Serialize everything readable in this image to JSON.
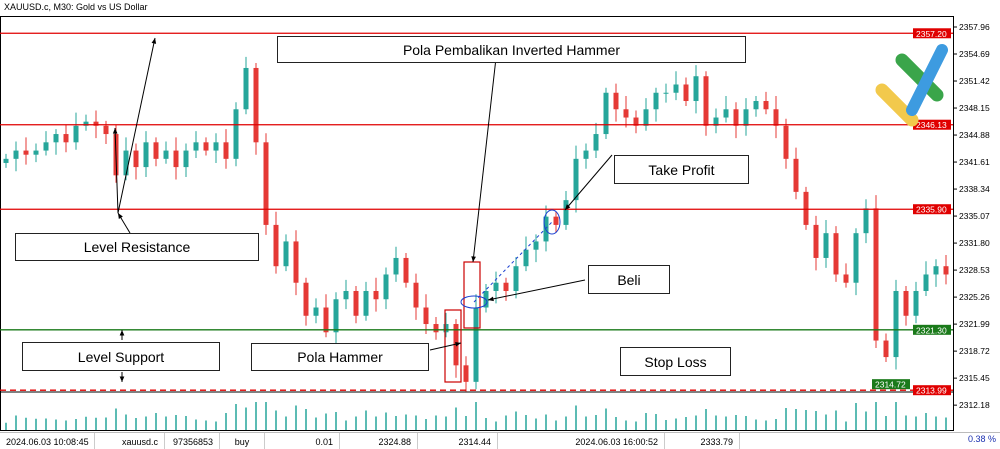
{
  "window_title": "XAUUSD.c, M30:  Gold vs US Dollar",
  "annotations": {
    "inverted_hammer": "Pola Pembalikan Inverted Hammer",
    "take_profit": "Take Profit",
    "level_resistance": "Level Resistance",
    "beli": "Beli",
    "level_support": "Level Support",
    "pola_hammer": "Pola Hammer",
    "stop_loss": "Stop Loss"
  },
  "status_bar": {
    "open_time": "2024.06.03 10:08:45",
    "symbol": "xauusd.c",
    "ticket": "97356853",
    "type": "buy",
    "volume": "0.01",
    "open_price": "2324.88",
    "sl": "2314.44",
    "close_time": "2024.06.03 16:00:52",
    "close_price": "2333.79",
    "percent": "0.38 %"
  },
  "colors": {
    "bull": "#26a69a",
    "bear": "#e53935",
    "resistance": "#e00000",
    "support": "#1a7a1a",
    "logo_green": "#3aa54a",
    "logo_blue": "#3d9be0",
    "logo_yellow": "#f2c94c"
  },
  "chart_data": {
    "type": "candlestick",
    "symbol": "XAUUSD.c",
    "timeframe": "M30",
    "ylim": [
      2310.5,
      2359.5
    ],
    "y_ticks": [
      "2357.96",
      "2354.69",
      "2351.42",
      "2348.15",
      "2344.88",
      "2341.61",
      "2338.34",
      "2335.07",
      "2331.80",
      "2328.53",
      "2325.26",
      "2321.99",
      "2318.72",
      "2315.45",
      "2312.18"
    ],
    "levels": [
      {
        "label": "2357.20",
        "value": 2357.2,
        "color": "#e00000",
        "style": "solid"
      },
      {
        "label": "2346.13",
        "value": 2346.13,
        "color": "#e00000",
        "style": "solid"
      },
      {
        "label": "2335.90",
        "value": 2335.9,
        "color": "#e00000",
        "style": "solid"
      },
      {
        "label": "2321.30",
        "value": 2321.3,
        "color": "#1a7a1a",
        "style": "solid"
      },
      {
        "label": "2314.72",
        "value": 2314.72,
        "color": "#1a7a1a",
        "style": "none"
      },
      {
        "label": "2313.99",
        "value": 2313.99,
        "color": "#e00000",
        "style": "dashed"
      }
    ],
    "closes": [
      2342,
      2343,
      2342.5,
      2343,
      2344,
      2345,
      2344,
      2346,
      2346.5,
      2346,
      2345,
      2340,
      2343,
      2341,
      2344,
      2342,
      2343,
      2341,
      2343,
      2344,
      2343,
      2344,
      2342,
      2348,
      2353,
      2344,
      2334,
      2329,
      2332,
      2327,
      2323,
      2324,
      2321,
      2325,
      2326,
      2323,
      2326,
      2325,
      2328,
      2330,
      2327,
      2324,
      2322,
      2321,
      2322,
      2317,
      2315,
      2324,
      2326,
      2327,
      2326,
      2329,
      2331,
      2332,
      2335,
      2334,
      2337,
      2342,
      2343,
      2345,
      2350,
      2348,
      2347,
      2346,
      2348,
      2350,
      2350,
      2351,
      2349,
      2352,
      2346,
      2347,
      2348,
      2346,
      2348,
      2349,
      2348,
      2346,
      2342,
      2338,
      2334,
      2330,
      2333,
      2328,
      2327,
      2333,
      2336,
      2320,
      2318,
      2326,
      2323,
      2326,
      2328,
      2329,
      2328
    ]
  }
}
